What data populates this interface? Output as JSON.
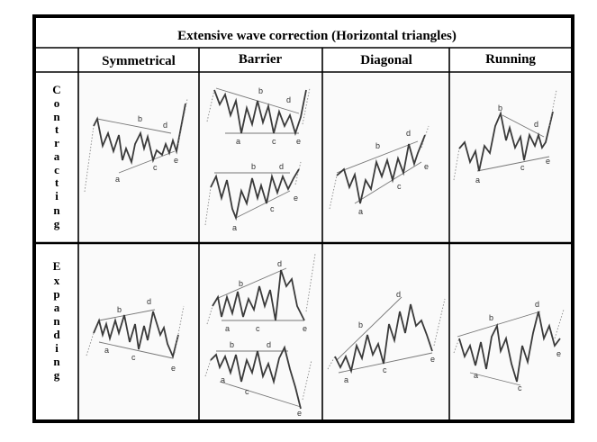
{
  "title": "Extensive wave correction (Horizontal triangles)",
  "columns": [
    "Symmetrical",
    "Barrier",
    "Diagonal",
    "Running"
  ],
  "rows": [
    {
      "name": "Contracting",
      "letters": [
        "C",
        "o",
        "n",
        "t",
        "r",
        "a",
        "c",
        "t",
        "i",
        "n",
        "g"
      ]
    },
    {
      "name": "Expanding",
      "letters": [
        "E",
        "x",
        "p",
        "a",
        "n",
        "d",
        "i",
        "n",
        "g"
      ]
    }
  ],
  "wave_labels": {
    "a": "a",
    "b": "b",
    "c": "c",
    "d": "d",
    "e": "e"
  },
  "colors": {
    "border": "#000000",
    "wave": "#3a3a3a",
    "guide": "#777777"
  }
}
